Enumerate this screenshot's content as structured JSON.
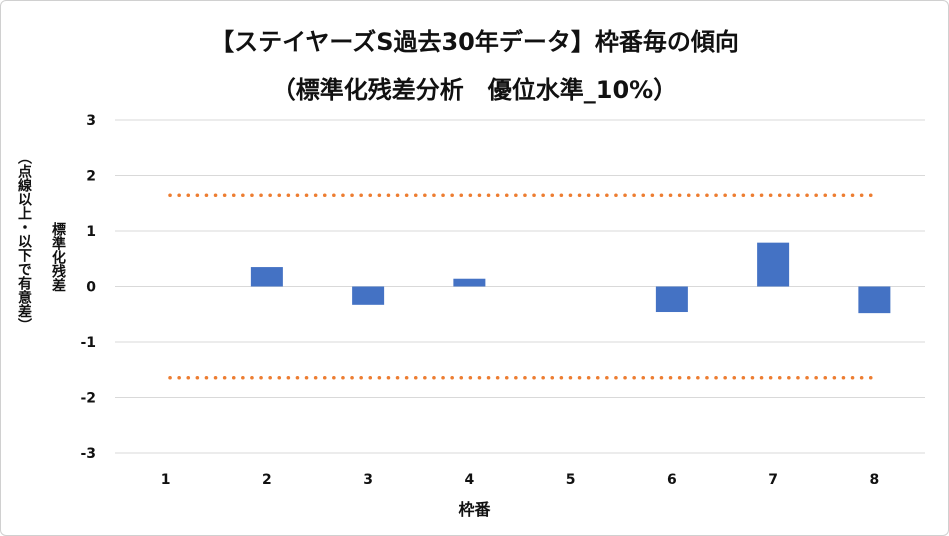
{
  "chart_data": {
    "type": "bar",
    "title": "【ステイヤーズS過去30年データ】枠番毎の傾向",
    "subtitle": "（標準化残差分析　優位水準_10%）",
    "xlabel": "枠番",
    "ylabel": "標準化残差",
    "ylabel_note": "（点線以上・以下で有意差）",
    "categories": [
      "1",
      "2",
      "3",
      "4",
      "5",
      "6",
      "7",
      "8"
    ],
    "values": [
      0,
      0.35,
      -0.33,
      0.14,
      0,
      -0.46,
      0.79,
      -0.48
    ],
    "ylim": [
      -3,
      3
    ],
    "yticks": [
      3,
      2,
      1,
      0,
      -1,
      -2,
      -3
    ],
    "thresholds": [
      1.645,
      -1.645
    ],
    "bar_color": "#4472c4",
    "threshold_color": "#ed7d31",
    "grid": true,
    "legend": false
  }
}
